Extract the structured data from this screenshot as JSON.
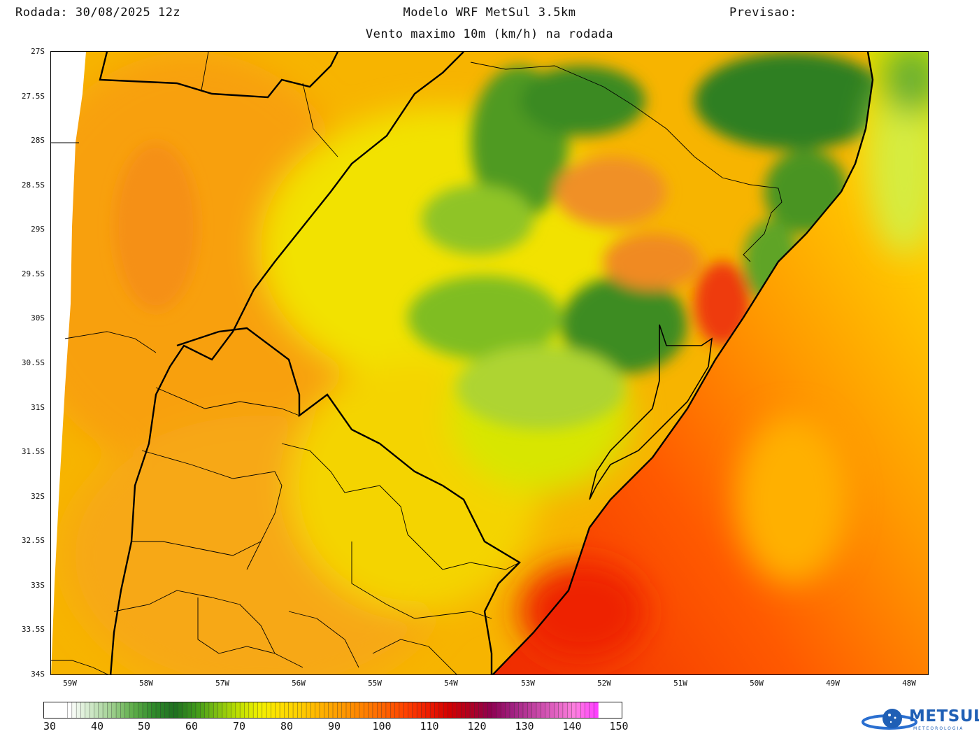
{
  "header": {
    "run": "Rodada: 30/08/2025 12z",
    "model": "Modelo WRF MetSul 3.5km",
    "forecast": "Previsao:",
    "subtitle": "Vento maximo 10m (km/h) na rodada"
  },
  "map": {
    "lat_range": [
      -27.0,
      -34.0
    ],
    "lon_range": [
      -59.25,
      -47.75
    ],
    "lat_ticks": [
      "27S",
      "27.5S",
      "28S",
      "28.5S",
      "29S",
      "29.5S",
      "30S",
      "30.5S",
      "31S",
      "31.5S",
      "32S",
      "32.5S",
      "33S",
      "33.5S",
      "34S"
    ],
    "lon_ticks": [
      "59W",
      "58W",
      "57W",
      "56W",
      "55W",
      "54W",
      "53W",
      "52W",
      "51W",
      "50W",
      "49W",
      "48W"
    ]
  },
  "colorbar": {
    "unit": "km/h",
    "labels": [
      "30",
      "40",
      "50",
      "60",
      "70",
      "80",
      "90",
      "100",
      "110",
      "120",
      "130",
      "140",
      "150"
    ],
    "colors": [
      "#ffffff",
      "#cfe8c8",
      "#9fcf8f",
      "#5fae4a",
      "#2f8a2a",
      "#1f7020",
      "#3f9a1a",
      "#7fbf10",
      "#bfe000",
      "#f0f000",
      "#ffe000",
      "#ffcc00",
      "#ffb000",
      "#ff9800",
      "#ff8000",
      "#ff6000",
      "#ff4000",
      "#ee1c00",
      "#d40000",
      "#b00020",
      "#8f0050",
      "#a02080",
      "#c040a0",
      "#e060c0",
      "#ff80e0",
      "#ff40ff"
    ]
  },
  "logo": {
    "name": "METSUL",
    "sub": "METEOROLOGIA"
  }
}
